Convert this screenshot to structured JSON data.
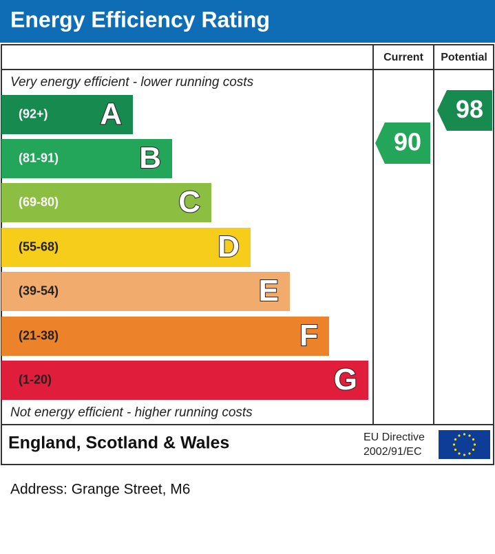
{
  "header": {
    "title": "Energy Efficiency Rating"
  },
  "columns": {
    "current": "Current",
    "potential": "Potential"
  },
  "top_note": "Very energy efficient - lower running costs",
  "bottom_note": "Not energy efficient - higher running costs",
  "bands": [
    {
      "range": "(92+)",
      "letter": "A",
      "color": "#178a4f"
    },
    {
      "range": "(81-91)",
      "letter": "B",
      "color": "#23a55a"
    },
    {
      "range": "(69-80)",
      "letter": "C",
      "color": "#8cbe42"
    },
    {
      "range": "(55-68)",
      "letter": "D",
      "color": "#f5cd1a"
    },
    {
      "range": "(39-54)",
      "letter": "E",
      "color": "#f1ab6c"
    },
    {
      "range": "(21-38)",
      "letter": "F",
      "color": "#ec8229"
    },
    {
      "range": "(1-20)",
      "letter": "G",
      "color": "#e11d3c"
    }
  ],
  "ratings": {
    "current": {
      "value": 90,
      "color": "#23a55a"
    },
    "potential": {
      "value": 98,
      "color": "#178a4f"
    }
  },
  "footer": {
    "region": "England, Scotland & Wales",
    "directive_line1": "EU Directive",
    "directive_line2": "2002/91/EC"
  },
  "address": "Address: Grange Street, M6"
}
